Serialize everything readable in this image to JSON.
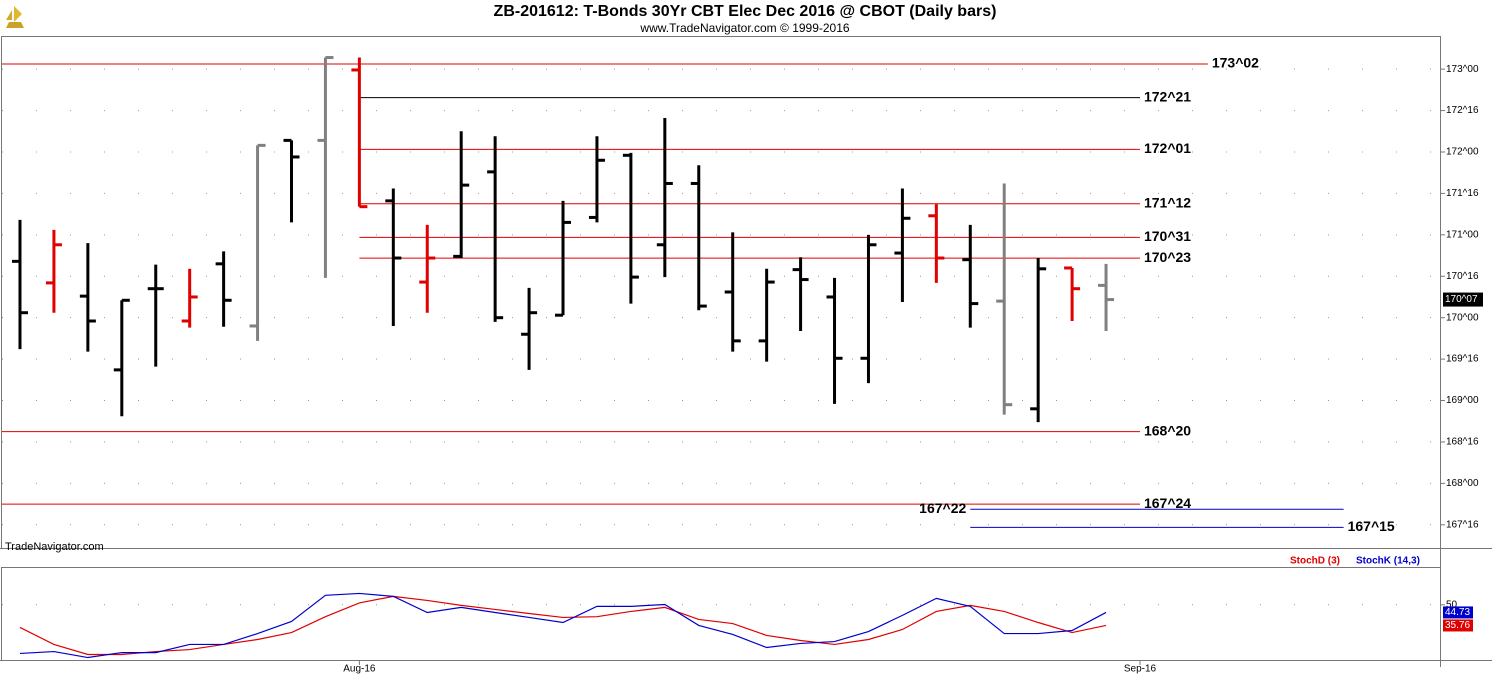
{
  "chart_data": [
    {
      "type": "ohlc",
      "title": "ZB-201612:  T-Bonds 30Yr CBT Elec Dec 2016 @ CBOT  (Daily bars)",
      "subtitle": "www.TradeNavigator.com © 1999-2016",
      "watermark": "TradeNavigator.com",
      "x": [
        0,
        1,
        2,
        3,
        4,
        5,
        6,
        7,
        8,
        9,
        10,
        11,
        12,
        13,
        14,
        15,
        16,
        17,
        18,
        19,
        20,
        21,
        22,
        23,
        24,
        25,
        26,
        27,
        28,
        29,
        30,
        31,
        32
      ],
      "open": [
        170.68,
        170.42,
        170.26,
        169.37,
        170.35,
        169.96,
        170.65,
        169.9,
        172.14,
        172.14,
        172.99,
        171.41,
        170.43,
        170.74,
        171.76,
        169.8,
        170.03,
        171.21,
        171.96,
        170.88,
        171.62,
        170.31,
        169.72,
        170.58,
        170.25,
        169.51,
        170.78,
        171.23,
        170.7,
        170.2,
        168.9,
        170.6,
        170.39
      ],
      "high": [
        171.18,
        171.06,
        170.9,
        170.21,
        170.64,
        170.59,
        170.8,
        172.08,
        172.14,
        173.14,
        173.14,
        171.56,
        171.12,
        172.25,
        172.19,
        170.36,
        171.41,
        172.19,
        171.99,
        172.41,
        171.84,
        171.03,
        170.59,
        170.73,
        170.48,
        171.0,
        171.56,
        171.37,
        171.12,
        171.62,
        170.72,
        170.6,
        170.65
      ],
      "low": [
        169.62,
        170.06,
        169.59,
        168.81,
        169.41,
        169.88,
        169.89,
        169.72,
        171.15,
        170.48,
        171.34,
        169.9,
        170.06,
        170.72,
        169.95,
        169.37,
        170.03,
        171.15,
        170.17,
        170.49,
        170.09,
        169.59,
        169.47,
        169.84,
        168.96,
        169.21,
        170.19,
        170.42,
        169.88,
        168.83,
        168.74,
        169.96,
        169.84
      ],
      "close": [
        170.06,
        170.88,
        169.96,
        170.21,
        170.35,
        170.25,
        170.21,
        172.08,
        171.94,
        173.14,
        171.34,
        170.72,
        170.72,
        171.6,
        170.0,
        170.06,
        171.15,
        171.9,
        170.49,
        171.62,
        170.14,
        169.72,
        170.43,
        170.46,
        169.51,
        170.88,
        171.2,
        170.72,
        170.17,
        168.95,
        170.59,
        170.35,
        170.21875
      ],
      "colors": [
        "#000000",
        "#e00000",
        "#000000",
        "#000000",
        "#000000",
        "#e00000",
        "#000000",
        "#808080",
        "#000000",
        "#808080",
        "#e00000",
        "#000000",
        "#e00000",
        "#000000",
        "#000000",
        "#000000",
        "#000000",
        "#000000",
        "#000000",
        "#000000",
        "#000000",
        "#000000",
        "#000000",
        "#000000",
        "#000000",
        "#000000",
        "#000000",
        "#e00000",
        "#000000",
        "#808080",
        "#000000",
        "#e00000",
        "#808080"
      ],
      "xlim": [
        -0.53,
        41.84
      ],
      "ylim": [
        167.22,
        173.4
      ],
      "yticks": [
        {
          "value": 167.5,
          "label": "167^16"
        },
        {
          "value": 168,
          "label": "168^00"
        },
        {
          "value": 168.5,
          "label": "168^16"
        },
        {
          "value": 169,
          "label": "169^00"
        },
        {
          "value": 169.5,
          "label": "169^16"
        },
        {
          "value": 170,
          "label": "170^00"
        },
        {
          "value": 170.5,
          "label": "170^16"
        },
        {
          "value": 171,
          "label": "171^00"
        },
        {
          "value": 171.5,
          "label": "171^16"
        },
        {
          "value": 172,
          "label": "172^00"
        },
        {
          "value": 172.5,
          "label": "172^16"
        },
        {
          "value": 173,
          "label": "173^00"
        }
      ],
      "grid": true,
      "levels": [
        {
          "value": 173.0625,
          "label": "173^02",
          "color": "#e00000",
          "from": -0.53,
          "to": 35
        },
        {
          "value": 172.65625,
          "label": "172^21",
          "color": "#000000",
          "from": 10,
          "to": 33
        },
        {
          "value": 172.03125,
          "label": "172^01",
          "color": "#e00000",
          "from": 10,
          "to": 33
        },
        {
          "value": 171.375,
          "label": "171^12",
          "color": "#e00000",
          "from": 10,
          "to": 33
        },
        {
          "value": 170.96875,
          "label": "170^31",
          "color": "#e00000",
          "from": 10,
          "to": 33
        },
        {
          "value": 170.71875,
          "label": "170^23",
          "color": "#e00000",
          "from": 10,
          "to": 33
        },
        {
          "value": 168.625,
          "label": "168^20",
          "color": "#e00000",
          "from": -0.53,
          "to": 33
        },
        {
          "value": 167.75,
          "label": "167^24",
          "color": "#e00000",
          "from": -0.53,
          "to": 33
        },
        {
          "value": 167.6875,
          "label": "167^22",
          "color": "#0000cc",
          "from": 28,
          "to": 39,
          "label_side": "left"
        },
        {
          "value": 167.46875,
          "label": "167^15",
          "color": "#0000cc",
          "from": 28,
          "to": 39
        }
      ],
      "last_price": {
        "value": 170.21875,
        "label": "170^07"
      }
    },
    {
      "type": "line",
      "x": [
        0,
        1,
        2,
        3,
        4,
        5,
        6,
        7,
        8,
        9,
        10,
        11,
        12,
        13,
        14,
        15,
        16,
        17,
        18,
        19,
        20,
        21,
        22,
        23,
        24,
        25,
        26,
        27,
        28,
        29,
        30,
        31,
        32
      ],
      "series": [
        {
          "name": "StochD (3)",
          "color": "#e00000",
          "values": [
            34.4,
            22.7,
            15.8,
            15.8,
            17.8,
            19.2,
            22.7,
            26.1,
            30.9,
            41.8,
            51.3,
            55.8,
            53.0,
            49.6,
            46.8,
            44.0,
            41.3,
            41.8,
            45.4,
            48.2,
            39.9,
            37.1,
            28.9,
            25.4,
            22.7,
            26.1,
            33.0,
            45.4,
            49.6,
            45.4,
            37.8,
            30.9,
            35.76
          ]
        },
        {
          "name": "StochK (14,3)",
          "color": "#0000cc",
          "values": [
            16.5,
            17.8,
            13.7,
            17.1,
            17.1,
            22.7,
            22.7,
            30.2,
            38.5,
            56.5,
            57.8,
            55.8,
            44.7,
            48.2,
            44.7,
            41.3,
            37.8,
            48.9,
            48.9,
            50.2,
            35.8,
            29.6,
            20.6,
            23.4,
            24.7,
            31.6,
            42.7,
            54.4,
            48.9,
            30.2,
            30.2,
            32.3,
            44.73
          ]
        }
      ],
      "xlim": [
        -0.53,
        41.84
      ],
      "xticks": [
        {
          "value": 10,
          "label": "Aug-16"
        },
        {
          "value": 33,
          "label": "Sep-16"
        }
      ],
      "ylim": [
        12,
        76
      ],
      "yticks": [
        50
      ],
      "grid": true
    }
  ]
}
